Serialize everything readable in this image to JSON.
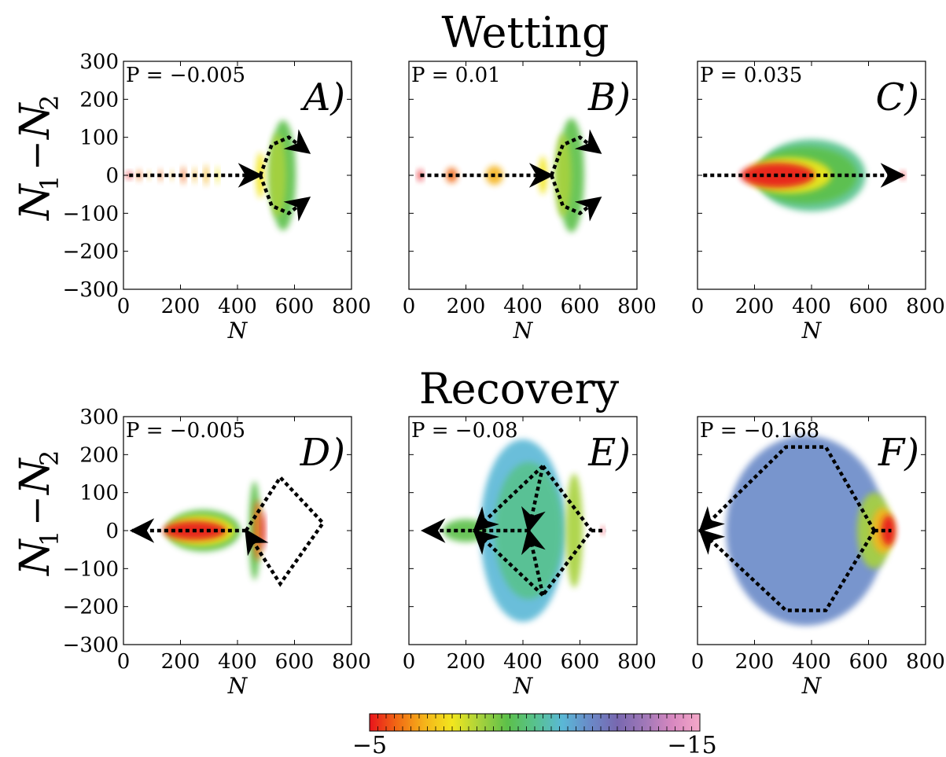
{
  "figure": {
    "row_titles": [
      "Wetting",
      "Recovery"
    ],
    "ylabel_main": "N",
    "ylabel_sub1": "1",
    "ylabel_minus": "−",
    "ylabel_sub2": "2",
    "xlabel": "N",
    "x_ticks": [
      "0",
      "200",
      "400",
      "600",
      "800"
    ],
    "y_ticks": [
      "300",
      "200",
      "100",
      "0",
      "−100",
      "−200",
      "−300"
    ],
    "colorbar": {
      "min_label": "−5",
      "max_label": "−15",
      "colors": [
        "#e8141c",
        "#f26a14",
        "#f5b41a",
        "#f2e61e",
        "#a8d23c",
        "#5cc04a",
        "#58c28e",
        "#5ab8d6",
        "#6a8ac8",
        "#7868b0",
        "#a078b8",
        "#d888c0",
        "#f4a8c8"
      ]
    }
  },
  "chart_data": [
    {
      "type": "heatmap",
      "panel": "A)",
      "pressure_label": "P = −0.005",
      "row": "Wetting",
      "xlim": [
        0,
        800
      ],
      "ylim": [
        -300,
        300
      ],
      "blobs": [
        {
          "x": 20,
          "y": 0,
          "w": 18,
          "h": 18,
          "c": 0
        },
        {
          "x": 55,
          "y": 0,
          "w": 14,
          "h": 28,
          "c": 1
        },
        {
          "x": 90,
          "y": 0,
          "w": 10,
          "h": 20,
          "c": 2
        },
        {
          "x": 130,
          "y": 0,
          "w": 12,
          "h": 30,
          "c": 1
        },
        {
          "x": 170,
          "y": 0,
          "w": 10,
          "h": 24,
          "c": 2
        },
        {
          "x": 210,
          "y": 0,
          "w": 14,
          "h": 45,
          "c": 1
        },
        {
          "x": 250,
          "y": 0,
          "w": 12,
          "h": 40,
          "c": 2
        },
        {
          "x": 290,
          "y": 0,
          "w": 14,
          "h": 55,
          "c": 2
        },
        {
          "x": 330,
          "y": 0,
          "w": 12,
          "h": 45,
          "c": 3
        },
        {
          "x": 480,
          "y": 0,
          "w": 30,
          "h": 120,
          "c": 3
        },
        {
          "x": 560,
          "y": 0,
          "w": 90,
          "h": 290,
          "c": 5
        },
        {
          "x": 540,
          "y": 0,
          "w": 60,
          "h": 220,
          "c": 4
        }
      ],
      "paths": [
        {
          "d": [
            [
              20,
              0
            ],
            [
              480,
              0
            ]
          ],
          "arrow": true
        },
        {
          "d": [
            [
              480,
              0
            ],
            [
              520,
              80
            ],
            [
              580,
              100
            ],
            [
              650,
              60
            ]
          ],
          "arrow": true
        },
        {
          "d": [
            [
              480,
              0
            ],
            [
              520,
              -80
            ],
            [
              580,
              -100
            ],
            [
              650,
              -60
            ]
          ],
          "arrow": true
        }
      ]
    },
    {
      "type": "heatmap",
      "panel": "B)",
      "pressure_label": "P = 0.01",
      "row": "Wetting",
      "xlim": [
        0,
        800
      ],
      "ylim": [
        -300,
        300
      ],
      "blobs": [
        {
          "x": 40,
          "y": 0,
          "w": 18,
          "h": 30,
          "c": 0
        },
        {
          "x": 150,
          "y": 0,
          "w": 40,
          "h": 40,
          "c": 1
        },
        {
          "x": 300,
          "y": 0,
          "w": 60,
          "h": 50,
          "c": 2
        },
        {
          "x": 470,
          "y": 0,
          "w": 30,
          "h": 100,
          "c": 3
        },
        {
          "x": 570,
          "y": 0,
          "w": 90,
          "h": 300,
          "c": 5
        },
        {
          "x": 540,
          "y": 0,
          "w": 60,
          "h": 220,
          "c": 4
        }
      ],
      "paths": [
        {
          "d": [
            [
              40,
              0
            ],
            [
              500,
              0
            ]
          ],
          "arrow": true
        },
        {
          "d": [
            [
              500,
              0
            ],
            [
              540,
              80
            ],
            [
              600,
              100
            ],
            [
              670,
              60
            ]
          ],
          "arrow": true
        },
        {
          "d": [
            [
              500,
              0
            ],
            [
              540,
              -80
            ],
            [
              600,
              -100
            ],
            [
              670,
              -60
            ]
          ],
          "arrow": true
        }
      ]
    },
    {
      "type": "heatmap",
      "panel": "C)",
      "pressure_label": "P = 0.035",
      "row": "Wetting",
      "xlim": [
        0,
        800
      ],
      "ylim": [
        -300,
        300
      ],
      "blobs": [
        {
          "x": 400,
          "y": 0,
          "w": 380,
          "h": 190,
          "c": 6
        },
        {
          "x": 380,
          "y": 0,
          "w": 360,
          "h": 150,
          "c": 5
        },
        {
          "x": 320,
          "y": 0,
          "w": 300,
          "h": 95,
          "c": 3
        },
        {
          "x": 280,
          "y": 0,
          "w": 260,
          "h": 65,
          "c": 0
        },
        {
          "x": 720,
          "y": 0,
          "w": 15,
          "h": 20,
          "c": 0
        }
      ],
      "paths": [
        {
          "d": [
            [
              20,
              0
            ],
            [
              720,
              0
            ]
          ],
          "arrow": true
        }
      ]
    },
    {
      "type": "heatmap",
      "panel": "D)",
      "pressure_label": "P = −0.005",
      "row": "Recovery",
      "xlim": [
        0,
        800
      ],
      "ylim": [
        -300,
        300
      ],
      "blobs": [
        {
          "x": 280,
          "y": 0,
          "w": 260,
          "h": 110,
          "c": 5
        },
        {
          "x": 270,
          "y": 0,
          "w": 240,
          "h": 80,
          "c": 3
        },
        {
          "x": 250,
          "y": 0,
          "w": 220,
          "h": 50,
          "c": 0
        },
        {
          "x": 460,
          "y": 0,
          "w": 40,
          "h": 260,
          "c": 5
        },
        {
          "x": 470,
          "y": 0,
          "w": 30,
          "h": 160,
          "c": 1
        },
        {
          "x": 490,
          "y": 0,
          "w": 15,
          "h": 100,
          "c": 0
        }
      ],
      "paths": [
        {
          "d": [
            [
              430,
              0
            ],
            [
              30,
              0
            ]
          ],
          "arrow": true
        },
        {
          "d": [
            [
              430,
              0
            ],
            [
              550,
              140
            ],
            [
              700,
              20
            ],
            [
              550,
              -140
            ],
            [
              430,
              0
            ]
          ],
          "arrow": true
        }
      ]
    },
    {
      "type": "heatmap",
      "panel": "E)",
      "pressure_label": "P = −0.08",
      "row": "Recovery",
      "xlim": [
        0,
        800
      ],
      "ylim": [
        -300,
        300
      ],
      "blobs": [
        {
          "x": 400,
          "y": 0,
          "w": 300,
          "h": 480,
          "c": 7
        },
        {
          "x": 420,
          "y": 0,
          "w": 240,
          "h": 360,
          "c": 6
        },
        {
          "x": 580,
          "y": 0,
          "w": 60,
          "h": 300,
          "c": 4
        },
        {
          "x": 200,
          "y": 0,
          "w": 160,
          "h": 60,
          "c": 5
        },
        {
          "x": 680,
          "y": 0,
          "w": 10,
          "h": 20,
          "c": 0
        }
      ],
      "paths": [
        {
          "d": [
            [
              420,
              0
            ],
            [
              50,
              0
            ]
          ],
          "arrow": true
        },
        {
          "d": [
            [
              470,
              170
            ],
            [
              420,
              0
            ]
          ],
          "arrow": true
        },
        {
          "d": [
            [
              470,
              -170
            ],
            [
              420,
              0
            ]
          ],
          "arrow": true
        },
        {
          "d": [
            [
              470,
              170
            ],
            [
              230,
              0
            ]
          ],
          "arrow": true
        },
        {
          "d": [
            [
              470,
              -170
            ],
            [
              230,
              0
            ]
          ],
          "arrow": true
        },
        {
          "d": [
            [
              470,
              170
            ],
            [
              640,
              0
            ],
            [
              470,
              -170
            ]
          ],
          "arrow": false
        },
        {
          "d": [
            [
              640,
              0
            ],
            [
              690,
              0
            ]
          ],
          "arrow": false
        }
      ]
    },
    {
      "type": "heatmap",
      "panel": "F)",
      "pressure_label": "P = −0.168",
      "row": "Recovery",
      "xlim": [
        0,
        800
      ],
      "ylim": [
        -300,
        300
      ],
      "blobs": [
        {
          "x": 380,
          "y": 0,
          "w": 560,
          "h": 500,
          "c": 8
        },
        {
          "x": 620,
          "y": 0,
          "w": 120,
          "h": 200,
          "c": 4
        },
        {
          "x": 650,
          "y": 0,
          "w": 80,
          "h": 120,
          "c": 2
        },
        {
          "x": 670,
          "y": 0,
          "w": 50,
          "h": 80,
          "c": 0
        }
      ],
      "paths": [
        {
          "d": [
            [
              620,
              0
            ],
            [
              450,
              220
            ],
            [
              310,
              220
            ],
            [
              10,
              0
            ]
          ],
          "arrow": true
        },
        {
          "d": [
            [
              620,
              0
            ],
            [
              450,
              -210
            ],
            [
              310,
              -210
            ],
            [
              10,
              0
            ]
          ],
          "arrow": true
        },
        {
          "d": [
            [
              620,
              0
            ],
            [
              680,
              0
            ]
          ],
          "arrow": false
        }
      ]
    }
  ]
}
